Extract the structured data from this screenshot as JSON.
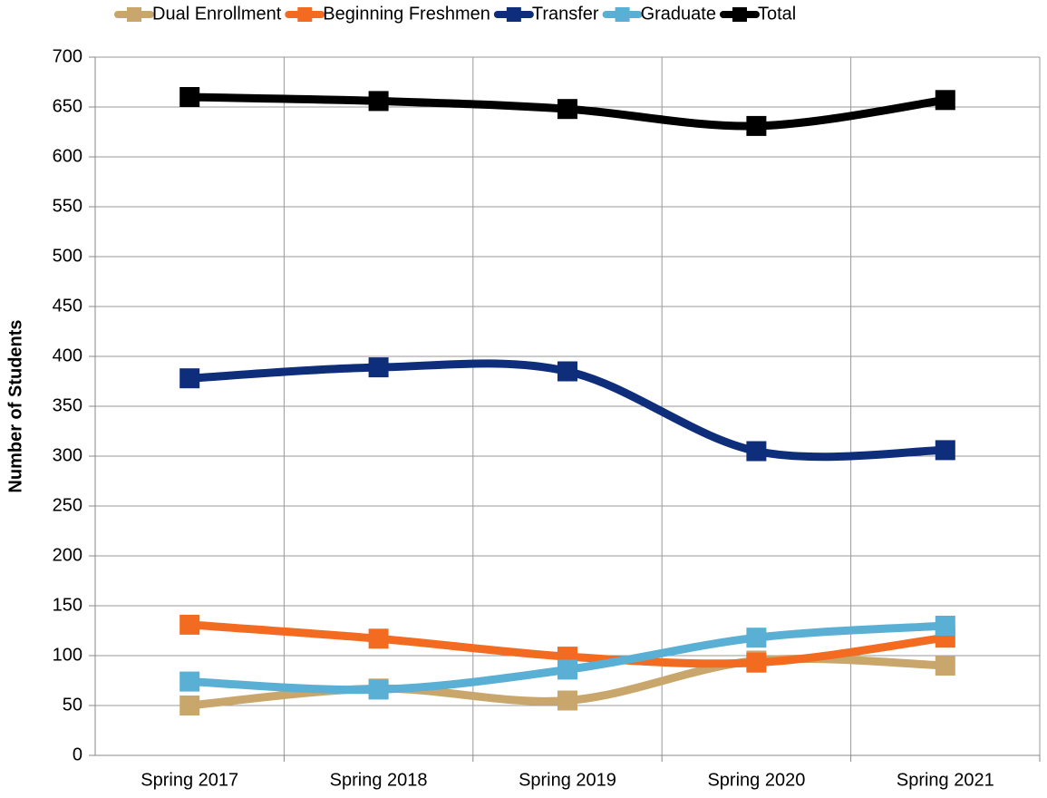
{
  "chart_data": {
    "type": "line",
    "y_label": "Number of Students",
    "categories": [
      "Spring 2017",
      "Spring 2018",
      "Spring 2019",
      "Spring 2020",
      "Spring 2021"
    ],
    "series": [
      {
        "name": "Dual Enrollment",
        "color": "#c9a66b",
        "values": [
          50,
          67,
          55,
          95,
          90
        ]
      },
      {
        "name": "Beginning Freshmen",
        "color": "#f26b21",
        "values": [
          131,
          117,
          99,
          93,
          118
        ]
      },
      {
        "name": "Transfer",
        "color": "#0e2d7a",
        "values": [
          378,
          389,
          385,
          305,
          306
        ]
      },
      {
        "name": "Graduate",
        "color": "#5aafd4",
        "values": [
          74,
          66,
          86,
          118,
          130
        ]
      },
      {
        "name": "Total",
        "color": "#000000",
        "values": [
          660,
          656,
          648,
          631,
          657
        ]
      }
    ],
    "ylim": [
      0,
      700
    ],
    "yticks": [
      0,
      50,
      100,
      150,
      200,
      250,
      300,
      350,
      400,
      450,
      500,
      550,
      600,
      650,
      700
    ],
    "grid": true,
    "legend": "top"
  }
}
